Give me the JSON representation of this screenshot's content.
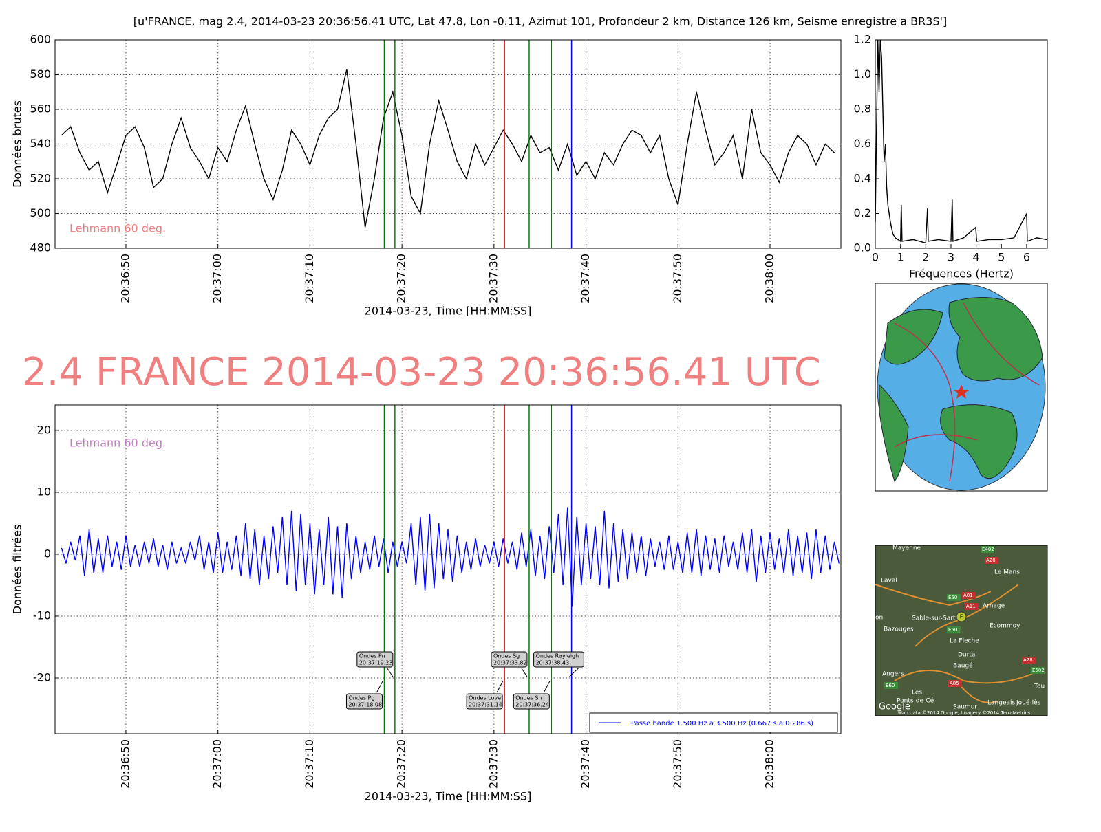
{
  "title": "[u'FRANCE, mag 2.4, 2014-03-23 20:36:56.41 UTC, Lat 47.8, Lon -0.11, Azimut 101, Profondeur 2 km, Distance   126 km, Seisme enregistre a BR3S']",
  "headline": "2.4 FRANCE 2014-03-23 20:36:56.41 UTC",
  "phases": [
    {
      "name": "Ondes Pg",
      "time": 78.08,
      "time_label": "20:37:18.08",
      "color": "#008000"
    },
    {
      "name": "Ondes Pn",
      "time": 79.23,
      "time_label": "20:37:19.23",
      "color": "#008000"
    },
    {
      "name": "Ondes Love",
      "time": 91.14,
      "time_label": "20:37:31.14",
      "color": "#ff0000"
    },
    {
      "name": "Ondes Sg",
      "time": 93.82,
      "time_label": "20:37:33.82",
      "color": "#008000"
    },
    {
      "name": "Ondes Sn",
      "time": 96.24,
      "time_label": "20:37:36.24",
      "color": "#008000"
    },
    {
      "name": "Ondes Rayleigh",
      "time": 98.43,
      "time_label": "20:37:38.43",
      "color": "#0000ff"
    }
  ],
  "chart_data": [
    {
      "type": "line",
      "ylabel": "Données brutes",
      "xlabel": "2014-03-23, Time [HH:MM:SS]",
      "annotation": "Lehmann 60 deg.",
      "annotation_color": "#f08080",
      "grid": true,
      "xlim": [
        42.3,
        127.7
      ],
      "ylim": [
        480,
        600
      ],
      "xticks": [
        {
          "value": 50,
          "label": "20:36:50"
        },
        {
          "value": 60,
          "label": "20:37:00"
        },
        {
          "value": 70,
          "label": "20:37:10"
        },
        {
          "value": 80,
          "label": "20:37:20"
        },
        {
          "value": 90,
          "label": "20:37:30"
        },
        {
          "value": 100,
          "label": "20:37:40"
        },
        {
          "value": 110,
          "label": "20:37:50"
        },
        {
          "value": 120,
          "label": "20:38:00"
        }
      ],
      "yticks": [
        480,
        500,
        520,
        540,
        560,
        580,
        600
      ],
      "x": [
        43,
        44,
        45,
        46,
        47,
        48,
        49,
        50,
        51,
        52,
        53,
        54,
        55,
        56,
        57,
        58,
        59,
        60,
        61,
        62,
        63,
        64,
        65,
        66,
        67,
        68,
        69,
        70,
        71,
        72,
        73,
        74,
        75,
        76,
        77,
        78,
        79,
        80,
        81,
        82,
        83,
        84,
        85,
        86,
        87,
        88,
        89,
        90,
        91,
        92,
        93,
        94,
        95,
        96,
        97,
        98,
        99,
        100,
        101,
        102,
        103,
        104,
        105,
        106,
        107,
        108,
        109,
        110,
        111,
        112,
        113,
        114,
        115,
        116,
        117,
        118,
        119,
        120,
        121,
        122,
        123,
        124,
        125,
        126,
        127
      ],
      "series": [
        {
          "color": "#000000",
          "values": [
            545,
            550,
            535,
            525,
            530,
            512,
            528,
            545,
            550,
            538,
            515,
            520,
            540,
            555,
            538,
            530,
            520,
            538,
            530,
            548,
            562,
            540,
            520,
            508,
            525,
            548,
            540,
            528,
            545,
            555,
            560,
            583,
            540,
            492,
            520,
            555,
            570,
            545,
            510,
            500,
            540,
            565,
            548,
            530,
            520,
            540,
            528,
            538,
            548,
            540,
            530,
            545,
            535,
            538,
            525,
            540,
            522,
            530,
            520,
            535,
            528,
            540,
            548,
            545,
            535,
            545,
            520,
            505,
            540,
            570,
            548,
            528,
            535,
            545,
            520,
            560,
            535,
            528,
            518,
            535,
            545,
            540,
            528,
            540,
            535
          ]
        }
      ]
    },
    {
      "type": "line",
      "xlabel": "Fréquences (Hertz)",
      "grid": false,
      "xlim": [
        0,
        6.82
      ],
      "ylim": [
        0,
        1.2
      ],
      "xticks": [
        0,
        1,
        2,
        3,
        4,
        5,
        6
      ],
      "yticks": [
        {
          "value": 0,
          "label": "0.0"
        },
        {
          "value": 0.2,
          "label": "0.2"
        },
        {
          "value": 0.4,
          "label": "0.4"
        },
        {
          "value": 0.6,
          "label": "0.6"
        },
        {
          "value": 0.8,
          "label": "0.8"
        },
        {
          "value": 1,
          "label": "1.0"
        },
        {
          "value": 1.2,
          "label": "1.2"
        }
      ],
      "x": [
        0,
        0.05,
        0.1,
        0.15,
        0.2,
        0.25,
        0.3,
        0.35,
        0.4,
        0.45,
        0.5,
        0.6,
        0.7,
        0.8,
        0.9,
        1.0,
        1.03,
        1.06,
        1.5,
        2.0,
        2.07,
        2.1,
        2.5,
        3.0,
        3.05,
        3.08,
        3.5,
        3.98,
        4.02,
        4.5,
        5.0,
        5.5,
        6.0,
        6.03,
        6.4,
        6.8
      ],
      "series": [
        {
          "color": "#000000",
          "values": [
            0.15,
            0.7,
            1.2,
            0.9,
            1.2,
            1.1,
            0.8,
            0.5,
            0.6,
            0.35,
            0.25,
            0.15,
            0.08,
            0.06,
            0.05,
            0.04,
            0.25,
            0.04,
            0.05,
            0.03,
            0.23,
            0.04,
            0.05,
            0.04,
            0.28,
            0.04,
            0.06,
            0.12,
            0.04,
            0.05,
            0.05,
            0.06,
            0.2,
            0.04,
            0.06,
            0.05
          ]
        }
      ]
    },
    {
      "type": "line",
      "ylabel": "Données filtrées",
      "xlabel": "2014-03-23, Time [HH:MM:SS]",
      "annotation": "Lehmann 60 deg.",
      "annotation_color": "#bf7fbf",
      "grid": true,
      "legend": "lower right",
      "xlim": [
        42.3,
        127.7
      ],
      "ylim": [
        -29,
        24.1
      ],
      "xticks": [
        {
          "value": 50,
          "label": "20:36:50"
        },
        {
          "value": 60,
          "label": "20:37:00"
        },
        {
          "value": 70,
          "label": "20:37:10"
        },
        {
          "value": 80,
          "label": "20:37:20"
        },
        {
          "value": 90,
          "label": "20:37:30"
        },
        {
          "value": 100,
          "label": "20:37:40"
        },
        {
          "value": 110,
          "label": "20:37:50"
        },
        {
          "value": 120,
          "label": "20:38:00"
        }
      ],
      "yticks": [
        -20,
        -10,
        0,
        10,
        20
      ],
      "x": [
        43,
        43.5,
        44,
        44.5,
        45,
        45.5,
        46,
        46.5,
        47,
        47.5,
        48,
        48.5,
        49,
        49.5,
        50,
        50.5,
        51,
        51.5,
        52,
        52.5,
        53,
        53.5,
        54,
        54.5,
        55,
        55.5,
        56,
        56.5,
        57,
        57.5,
        58,
        58.5,
        59,
        59.5,
        60,
        60.5,
        61,
        61.5,
        62,
        62.5,
        63,
        63.5,
        64,
        64.5,
        65,
        65.5,
        66,
        66.5,
        67,
        67.5,
        68,
        68.5,
        69,
        69.5,
        70,
        70.5,
        71,
        71.5,
        72,
        72.5,
        73,
        73.5,
        74,
        74.5,
        75,
        75.5,
        76,
        76.5,
        77,
        77.5,
        78,
        78.5,
        79,
        79.5,
        80,
        80.5,
        81,
        81.5,
        82,
        82.5,
        83,
        83.5,
        84,
        84.5,
        85,
        85.5,
        86,
        86.5,
        87,
        87.5,
        88,
        88.5,
        89,
        89.5,
        90,
        90.5,
        91,
        91.5,
        92,
        92.5,
        93,
        93.5,
        94,
        94.5,
        95,
        95.5,
        96,
        96.5,
        97,
        97.5,
        98,
        98.5,
        99,
        99.5,
        100,
        100.5,
        101,
        101.5,
        102,
        102.5,
        103,
        103.5,
        104,
        104.5,
        105,
        105.5,
        106,
        106.5,
        107,
        107.5,
        108,
        108.5,
        109,
        109.5,
        110,
        110.5,
        111,
        111.5,
        112,
        112.5,
        113,
        113.5,
        114,
        114.5,
        115,
        115.5,
        116,
        116.5,
        117,
        117.5,
        118,
        118.5,
        119,
        119.5,
        120,
        120.5,
        121,
        121.5,
        122,
        122.5,
        123,
        123.5,
        124,
        124.5,
        125,
        125.5,
        126,
        126.5,
        127,
        127.5
      ],
      "series": [
        {
          "name": "Passe bande 1.500 Hz a 3.500 Hz (0.667 s a 0.286 s)",
          "color": "#0000ff",
          "values": [
            1,
            -1.5,
            2,
            -1,
            3,
            -3.5,
            4,
            -3,
            2.5,
            -3,
            3,
            -2,
            2,
            -2.5,
            3,
            -2,
            1.5,
            -2,
            2,
            -1.5,
            2.5,
            -2,
            1.5,
            -2.5,
            2,
            -1.5,
            1,
            -1.5,
            2,
            -1,
            3,
            -2.5,
            2,
            -3,
            3.5,
            -3,
            2,
            -2.5,
            3,
            -3.5,
            5,
            -4,
            4,
            -5,
            3,
            -4,
            4.5,
            -3,
            6,
            -5,
            7,
            -6,
            6.5,
            -5,
            5,
            -6.5,
            4,
            -5,
            6,
            -6.5,
            4.5,
            -7,
            5,
            -4,
            3,
            -3,
            2,
            -2.5,
            3,
            -2,
            2.5,
            -3,
            2,
            -2,
            2,
            -1.5,
            5,
            -5,
            6,
            -6,
            6.5,
            -5.5,
            5,
            -4,
            4,
            -4.5,
            3,
            -3,
            2,
            -2.5,
            2.5,
            -2,
            1.5,
            -1.5,
            2,
            -2,
            2.5,
            -1.5,
            2,
            -2.5,
            3.5,
            -2,
            4,
            -3.5,
            3,
            -4,
            4.5,
            -3,
            6.5,
            -5,
            7.5,
            -8.5,
            6,
            -5,
            5,
            -4,
            4.5,
            -5,
            7,
            -5.5,
            5,
            -4.5,
            4,
            -4,
            3.5,
            -3,
            3,
            -3.5,
            2.5,
            -2,
            2,
            -2.5,
            3,
            -2.5,
            2,
            -3,
            3.5,
            -3,
            4,
            -3.5,
            3,
            -2.5,
            2.5,
            -3,
            3,
            -2,
            2,
            -2.5,
            3.5,
            -3,
            4,
            -4.5,
            3,
            -3,
            3.5,
            -2.5,
            2.5,
            -3,
            4,
            -3.5,
            3,
            -3,
            3.5,
            -4,
            4,
            -3,
            3,
            -2.5,
            2,
            -1.5
          ]
        }
      ]
    }
  ],
  "map": {
    "labels": [
      "Mayenne",
      "Laval",
      "Le Mans",
      "Arnage",
      "Sable-sur-Sart",
      "Bazouges",
      "Ecommoy",
      "La Fleche",
      "Durtal",
      "Baugé",
      "Angers",
      "Les",
      "Ponts-de-Cé",
      "Saumur",
      "Langeais",
      "Joué-lès",
      "Tou",
      "on",
      "Google",
      "Map data ©2014 Google, Imagery ©2014 TerraMetrics"
    ],
    "roads": [
      "E402",
      "A28",
      "A81",
      "A11",
      "E50",
      "E501",
      "A28",
      "E502",
      "A85",
      "E60"
    ],
    "marker": "F"
  }
}
